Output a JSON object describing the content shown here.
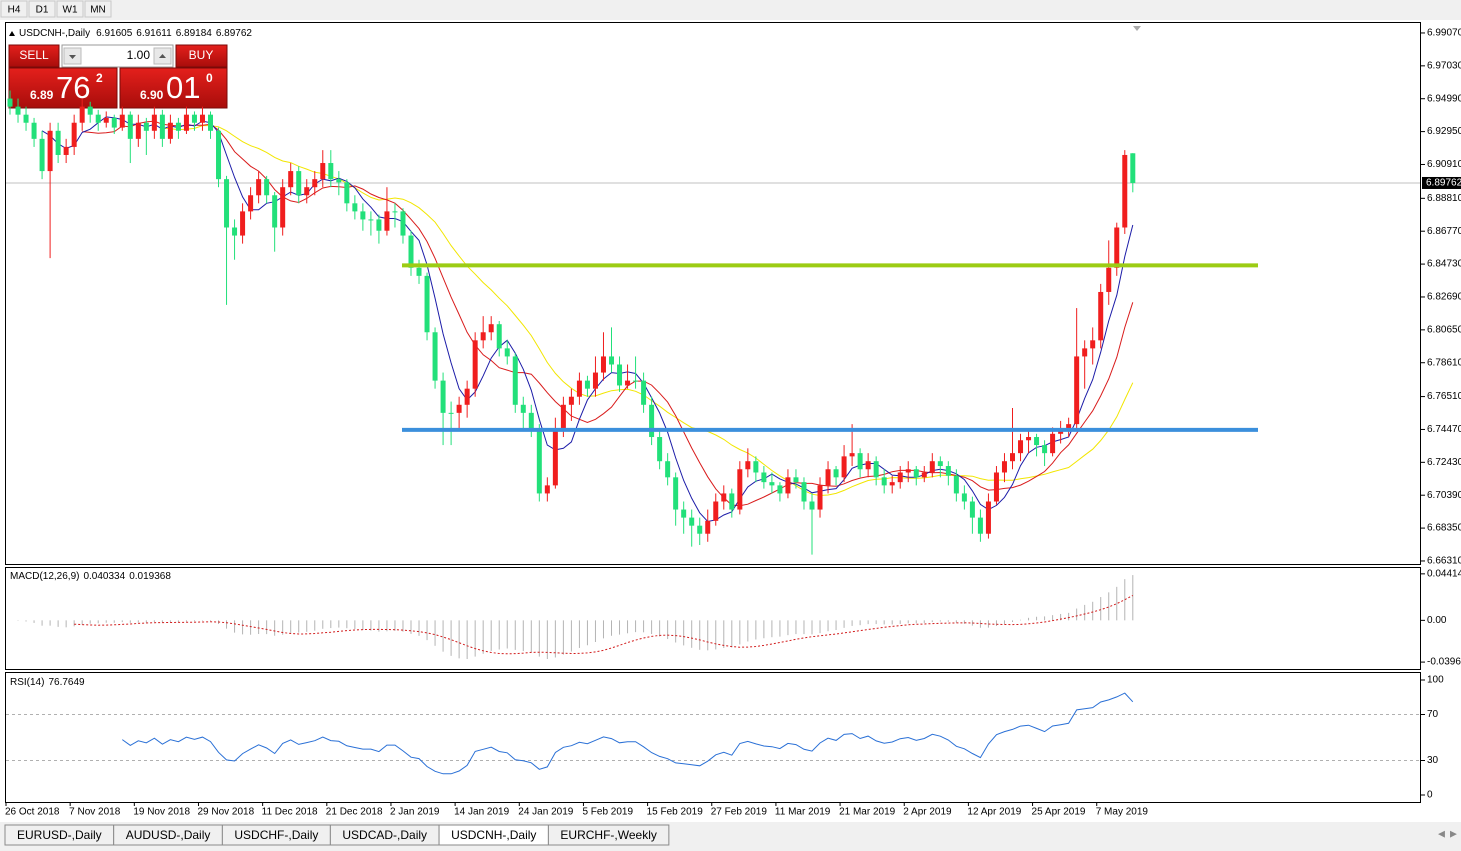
{
  "toolbar": {
    "buttons": [
      "H4",
      "D1",
      "W1",
      "MN"
    ]
  },
  "trade_panel": {
    "sell": "SELL",
    "buy": "BUY",
    "lot": "1.00",
    "bid": {
      "big": "6.89",
      "pips": "76",
      "fraction": "2"
    },
    "ask": {
      "big": "6.90",
      "pips": "01",
      "fraction": "0"
    }
  },
  "chart_data": {
    "type": "candlestick",
    "symbol": "USDCNH-,Daily",
    "categories": [
      "26 Oct 2018",
      null,
      null,
      null,
      null,
      null,
      null,
      null,
      "7 Nov 2018",
      null,
      null,
      null,
      null,
      null,
      null,
      null,
      "19 Nov 2018",
      null,
      null,
      null,
      null,
      null,
      null,
      null,
      "29 Nov 2018",
      null,
      null,
      null,
      null,
      null,
      null,
      null,
      "11 Dec 2018",
      null,
      null,
      null,
      null,
      null,
      null,
      null,
      "21 Dec 2018",
      null,
      null,
      null,
      null,
      null,
      null,
      null,
      "2 Jan 2019",
      null,
      null,
      null,
      null,
      null,
      null,
      null,
      "14 Jan 2019",
      null,
      null,
      null,
      null,
      null,
      null,
      null,
      "24 Jan 2019",
      null,
      null,
      null,
      null,
      null,
      null,
      null,
      "5 Feb 2019",
      null,
      null,
      null,
      null,
      null,
      null,
      null,
      "15 Feb 2019",
      null,
      null,
      null,
      null,
      null,
      null,
      null,
      "27 Feb 2019",
      null,
      null,
      null,
      null,
      null,
      null,
      null,
      "11 Mar 2019",
      null,
      null,
      null,
      null,
      null,
      null,
      null,
      "21 Mar 2019",
      null,
      null,
      null,
      null,
      null,
      null,
      null,
      "2 Apr 2019",
      null,
      null,
      null,
      null,
      null,
      null,
      null,
      "12 Apr 2019",
      null,
      null,
      null,
      null,
      null,
      null,
      null,
      "25 Apr 2019",
      null,
      null,
      null,
      null,
      null,
      null,
      null,
      "7 May 2019",
      null,
      null,
      null,
      null
    ],
    "candles": [
      [
        6.95,
        6.955,
        6.94,
        6.945
      ],
      [
        6.945,
        6.95,
        6.935,
        6.94
      ],
      [
        6.94,
        6.945,
        6.93,
        6.935
      ],
      [
        6.935,
        6.938,
        6.92,
        6.925
      ],
      [
        6.925,
        6.93,
        6.9,
        6.905
      ],
      [
        6.905,
        6.935,
        6.851,
        6.93
      ],
      [
        6.93,
        6.935,
        6.91,
        6.915
      ],
      [
        6.915,
        6.925,
        6.91,
        6.92
      ],
      [
        6.92,
        6.94,
        6.915,
        6.935
      ],
      [
        6.935,
        6.95,
        6.93,
        6.945
      ],
      [
        6.945,
        6.948,
        6.935,
        6.94
      ],
      [
        6.94,
        6.943,
        6.93,
        6.935
      ],
      [
        6.935,
        6.942,
        6.932,
        6.938
      ],
      [
        6.938,
        6.94,
        6.928,
        6.932
      ],
      [
        6.932,
        6.945,
        6.93,
        6.94
      ],
      [
        6.94,
        6.942,
        6.91,
        6.925
      ],
      [
        6.925,
        6.94,
        6.92,
        6.935
      ],
      [
        6.935,
        6.938,
        6.915,
        6.93
      ],
      [
        6.93,
        6.945,
        6.925,
        6.94
      ],
      [
        6.94,
        6.943,
        6.92,
        6.925
      ],
      [
        6.925,
        6.94,
        6.922,
        6.935
      ],
      [
        6.935,
        6.938,
        6.925,
        6.93
      ],
      [
        6.93,
        6.945,
        6.928,
        6.94
      ],
      [
        6.94,
        6.942,
        6.93,
        6.935
      ],
      [
        6.935,
        6.945,
        6.93,
        6.94
      ],
      [
        6.94,
        6.942,
        6.925,
        6.93
      ],
      [
        6.93,
        6.932,
        6.895,
        6.9
      ],
      [
        6.9,
        6.902,
        6.822,
        6.87
      ],
      [
        6.87,
        6.875,
        6.85,
        6.865
      ],
      [
        6.865,
        6.885,
        6.86,
        6.88
      ],
      [
        6.88,
        6.895,
        6.875,
        6.89
      ],
      [
        6.89,
        6.905,
        6.885,
        6.9
      ],
      [
        6.9,
        6.902,
        6.885,
        6.89
      ],
      [
        6.89,
        6.892,
        6.855,
        6.87
      ],
      [
        6.87,
        6.9,
        6.865,
        6.895
      ],
      [
        6.895,
        6.91,
        6.89,
        6.905
      ],
      [
        6.905,
        6.908,
        6.885,
        6.89
      ],
      [
        6.89,
        6.9,
        6.885,
        6.895
      ],
      [
        6.895,
        6.905,
        6.89,
        6.9
      ],
      [
        6.9,
        6.918,
        6.895,
        6.91
      ],
      [
        6.91,
        6.918,
        6.895,
        6.9
      ],
      [
        6.9,
        6.905,
        6.89,
        6.898
      ],
      [
        6.898,
        6.9,
        6.88,
        6.885
      ],
      [
        6.885,
        6.89,
        6.875,
        6.88
      ],
      [
        6.88,
        6.885,
        6.868,
        6.875
      ],
      [
        6.875,
        6.88,
        6.865,
        6.875
      ],
      [
        6.875,
        6.878,
        6.86,
        6.868
      ],
      [
        6.868,
        6.895,
        6.865,
        6.88
      ],
      [
        6.88,
        6.885,
        6.87,
        6.88
      ],
      [
        6.88,
        6.882,
        6.86,
        6.865
      ],
      [
        6.865,
        6.868,
        6.84,
        6.845
      ],
      [
        6.845,
        6.85,
        6.835,
        6.84
      ],
      [
        6.84,
        6.842,
        6.8,
        6.805
      ],
      [
        6.805,
        6.808,
        6.77,
        6.775
      ],
      [
        6.775,
        6.78,
        6.735,
        6.755
      ],
      [
        6.755,
        6.762,
        6.735,
        6.755
      ],
      [
        6.755,
        6.765,
        6.745,
        6.76
      ],
      [
        6.76,
        6.775,
        6.752,
        6.77
      ],
      [
        6.77,
        6.805,
        6.765,
        6.8
      ],
      [
        6.8,
        6.815,
        6.795,
        6.805
      ],
      [
        6.805,
        6.815,
        6.8,
        6.81
      ],
      [
        6.81,
        6.812,
        6.79,
        6.795
      ],
      [
        6.795,
        6.8,
        6.785,
        6.79
      ],
      [
        6.79,
        6.792,
        6.755,
        6.76
      ],
      [
        6.76,
        6.765,
        6.745,
        6.755
      ],
      [
        6.755,
        6.76,
        6.74,
        6.745
      ],
      [
        6.745,
        6.748,
        6.7,
        6.705
      ],
      [
        6.705,
        6.715,
        6.7,
        6.71
      ],
      [
        6.71,
        6.752,
        6.708,
        6.745
      ],
      [
        6.745,
        6.765,
        6.74,
        6.76
      ],
      [
        6.76,
        6.77,
        6.75,
        6.765
      ],
      [
        6.765,
        6.78,
        6.76,
        6.775
      ],
      [
        6.775,
        6.778,
        6.765,
        6.77
      ],
      [
        6.77,
        6.79,
        6.765,
        6.78
      ],
      [
        6.78,
        6.805,
        6.775,
        6.79
      ],
      [
        6.79,
        6.808,
        6.78,
        6.785
      ],
      [
        6.785,
        6.79,
        6.768,
        6.772
      ],
      [
        6.772,
        6.785,
        6.77,
        6.775
      ],
      [
        6.775,
        6.79,
        6.77,
        6.775
      ],
      [
        6.775,
        6.78,
        6.755,
        6.76
      ],
      [
        6.76,
        6.765,
        6.735,
        6.74
      ],
      [
        6.74,
        6.745,
        6.72,
        6.725
      ],
      [
        6.725,
        6.73,
        6.71,
        6.715
      ],
      [
        6.715,
        6.718,
        6.685,
        6.695
      ],
      [
        6.695,
        6.7,
        6.68,
        6.69
      ],
      [
        6.69,
        6.695,
        6.672,
        6.685
      ],
      [
        6.685,
        6.69,
        6.673,
        6.68
      ],
      [
        6.68,
        6.695,
        6.675,
        6.688
      ],
      [
        6.688,
        6.705,
        6.685,
        6.7
      ],
      [
        6.7,
        6.71,
        6.695,
        6.705
      ],
      [
        6.705,
        6.708,
        6.69,
        6.695
      ],
      [
        6.695,
        6.725,
        6.692,
        6.72
      ],
      [
        6.72,
        6.733,
        6.715,
        6.725
      ],
      [
        6.725,
        6.728,
        6.712,
        6.718
      ],
      [
        6.718,
        6.722,
        6.708,
        6.712
      ],
      [
        6.712,
        6.718,
        6.705,
        6.71
      ],
      [
        6.71,
        6.712,
        6.7,
        6.705
      ],
      [
        6.705,
        6.72,
        6.702,
        6.715
      ],
      [
        6.715,
        6.72,
        6.708,
        6.712
      ],
      [
        6.712,
        6.715,
        6.695,
        6.7
      ],
      [
        6.7,
        6.705,
        6.667,
        6.695
      ],
      [
        6.695,
        6.715,
        6.69,
        6.71
      ],
      [
        6.71,
        6.725,
        6.705,
        6.72
      ],
      [
        6.72,
        6.722,
        6.71,
        6.715
      ],
      [
        6.715,
        6.735,
        6.712,
        6.728
      ],
      [
        6.728,
        6.748,
        6.722,
        6.73
      ],
      [
        6.73,
        6.733,
        6.715,
        6.72
      ],
      [
        6.72,
        6.73,
        6.715,
        6.725
      ],
      [
        6.725,
        6.728,
        6.71,
        6.715
      ],
      [
        6.715,
        6.72,
        6.705,
        6.71
      ],
      [
        6.71,
        6.716,
        6.705,
        6.712
      ],
      [
        6.712,
        6.722,
        6.708,
        6.718
      ],
      [
        6.718,
        6.725,
        6.712,
        6.72
      ],
      [
        6.72,
        6.722,
        6.71,
        6.715
      ],
      [
        6.715,
        6.722,
        6.712,
        6.718
      ],
      [
        6.718,
        6.73,
        6.715,
        6.725
      ],
      [
        6.725,
        6.728,
        6.715,
        6.722
      ],
      [
        6.722,
        6.725,
        6.71,
        6.716
      ],
      [
        6.716,
        6.72,
        6.7,
        6.705
      ],
      [
        6.705,
        6.71,
        6.695,
        6.7
      ],
      [
        6.7,
        6.703,
        6.68,
        6.69
      ],
      [
        6.69,
        6.695,
        6.675,
        6.68
      ],
      [
        6.68,
        6.705,
        6.677,
        6.7
      ],
      [
        6.7,
        6.722,
        6.698,
        6.718
      ],
      [
        6.718,
        6.73,
        6.712,
        6.725
      ],
      [
        6.725,
        6.758,
        6.72,
        6.73
      ],
      [
        6.73,
        6.742,
        6.725,
        6.738
      ],
      [
        6.738,
        6.745,
        6.73,
        6.74
      ],
      [
        6.74,
        6.742,
        6.728,
        6.735
      ],
      [
        6.735,
        6.738,
        6.722,
        6.73
      ],
      [
        6.73,
        6.746,
        6.728,
        6.742
      ],
      [
        6.742,
        6.75,
        6.736,
        6.745
      ],
      [
        6.745,
        6.752,
        6.74,
        6.748
      ],
      [
        6.748,
        6.82,
        6.745,
        6.79
      ],
      [
        6.79,
        6.8,
        6.77,
        6.795
      ],
      [
        6.795,
        6.808,
        6.785,
        6.8
      ],
      [
        6.8,
        6.835,
        6.795,
        6.83
      ],
      [
        6.83,
        6.862,
        6.822,
        6.845
      ],
      [
        6.845,
        6.873,
        6.84,
        6.87
      ],
      [
        6.87,
        6.918,
        6.866,
        6.915
      ],
      [
        6.91605,
        6.91611,
        6.89184,
        6.89762
      ]
    ],
    "up_color": "#f01e1e",
    "down_color": "#22e07a",
    "ylim": [
      6.6606,
      6.9975
    ],
    "yticks": [
      {
        "value": 6.9907,
        "label": "6.99070"
      },
      {
        "value": 6.9703,
        "label": "6.97030"
      },
      {
        "value": 6.9499,
        "label": "6.94990"
      },
      {
        "value": 6.9295,
        "label": "6.92950"
      },
      {
        "value": 6.9091,
        "label": "6.90910"
      },
      {
        "value": 6.8881,
        "label": "6.88810"
      },
      {
        "value": 6.8677,
        "label": "6.86770"
      },
      {
        "value": 6.8473,
        "label": "6.84730"
      },
      {
        "value": 6.8269,
        "label": "6.82690"
      },
      {
        "value": 6.8065,
        "label": "6.80650"
      },
      {
        "value": 6.7861,
        "label": "6.78610"
      },
      {
        "value": 6.7651,
        "label": "6.76510"
      },
      {
        "value": 6.7447,
        "label": "6.74470"
      },
      {
        "value": 6.7243,
        "label": "6.72430"
      },
      {
        "value": 6.7039,
        "label": "6.70390"
      },
      {
        "value": 6.6835,
        "label": "6.68350"
      },
      {
        "value": 6.6631,
        "label": "6.66310"
      }
    ],
    "hlines": [
      {
        "value": 6.8465,
        "color": "#9ccc14"
      },
      {
        "value": 6.7444,
        "color": "#3b8fdc"
      }
    ],
    "macd": {
      "label": "MACD(12,26,9)",
      "fast": 12,
      "slow": 26,
      "signal": 9,
      "main": 0.040334,
      "signal_value": 0.019368,
      "ylim": [
        -0.0462,
        0.0497
      ],
      "yticks": [
        0.044143,
        {
          "value": 0,
          "label": "0.00"
        },
        -0.03964
      ]
    },
    "rsi": {
      "label": "RSI(14)",
      "period": 14,
      "value": 76.7649,
      "ylim": [
        0,
        100
      ],
      "yticks": [
        100,
        70,
        30,
        0
      ]
    }
  },
  "tabs": {
    "items": [
      "EURUSD-,Daily",
      "AUDUSD-,Daily",
      "USDCHF-,Daily",
      "USDCAD-,Daily",
      "USDCNH-,Daily",
      "EURCHF-,Weekly"
    ],
    "active": 4
  }
}
